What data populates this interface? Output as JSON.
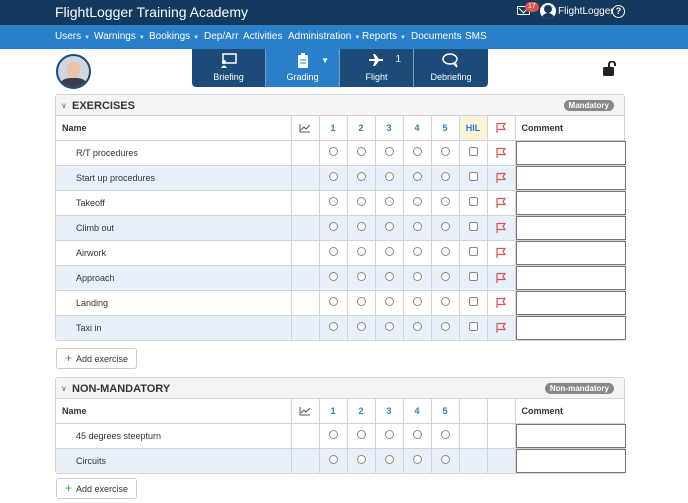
{
  "app": {
    "title": "FlightLogger Training Academy",
    "user": "FlightLogger",
    "mail_count": "17",
    "help": "?"
  },
  "nav": [
    {
      "label": "Users",
      "dropdown": true
    },
    {
      "label": "Warnings",
      "dropdown": true
    },
    {
      "label": "Bookings",
      "dropdown": true
    },
    {
      "label": "Dep/Arr",
      "dropdown": false
    },
    {
      "label": "Activities",
      "dropdown": false
    },
    {
      "label": "Administration",
      "dropdown": true
    },
    {
      "label": "Reports",
      "dropdown": true
    },
    {
      "label": "Documents",
      "dropdown": false
    },
    {
      "label": "SMS",
      "dropdown": false
    }
  ],
  "phases": [
    {
      "label": "Briefing",
      "icon": "briefing-icon"
    },
    {
      "label": "Grading",
      "icon": "clipboard-icon",
      "active": true
    },
    {
      "label": "Flight",
      "icon": "plane-icon",
      "count": "1"
    },
    {
      "label": "Debriefing",
      "icon": "speech-bubbles-icon"
    }
  ],
  "exercises": {
    "title": "EXERCISES",
    "tag": "Mandatory",
    "columns": {
      "name": "Name",
      "grades": [
        "1",
        "2",
        "3",
        "4",
        "5"
      ],
      "hil": "HIL",
      "comment": "Comment"
    },
    "rows": [
      "R/T procedures",
      "Start up procedures",
      "Takeoff",
      "Climb out",
      "Airwork",
      "Approach",
      "Landing",
      "Taxi in"
    ],
    "add_label": "Add exercise"
  },
  "non_mandatory": {
    "title": "NON-MANDATORY",
    "tag": "Non-mandatory",
    "columns": {
      "name": "Name",
      "grades": [
        "1",
        "2",
        "3",
        "4",
        "5"
      ],
      "comment": "Comment"
    },
    "rows": [
      "45 degrees steepturn",
      "Circuits"
    ],
    "add_label": "Add exercise"
  },
  "colors": {
    "topbar": "#13395e",
    "navbar": "#2a7fc9",
    "flag": "#d9534f",
    "row_alt": "#e8f1fa"
  }
}
